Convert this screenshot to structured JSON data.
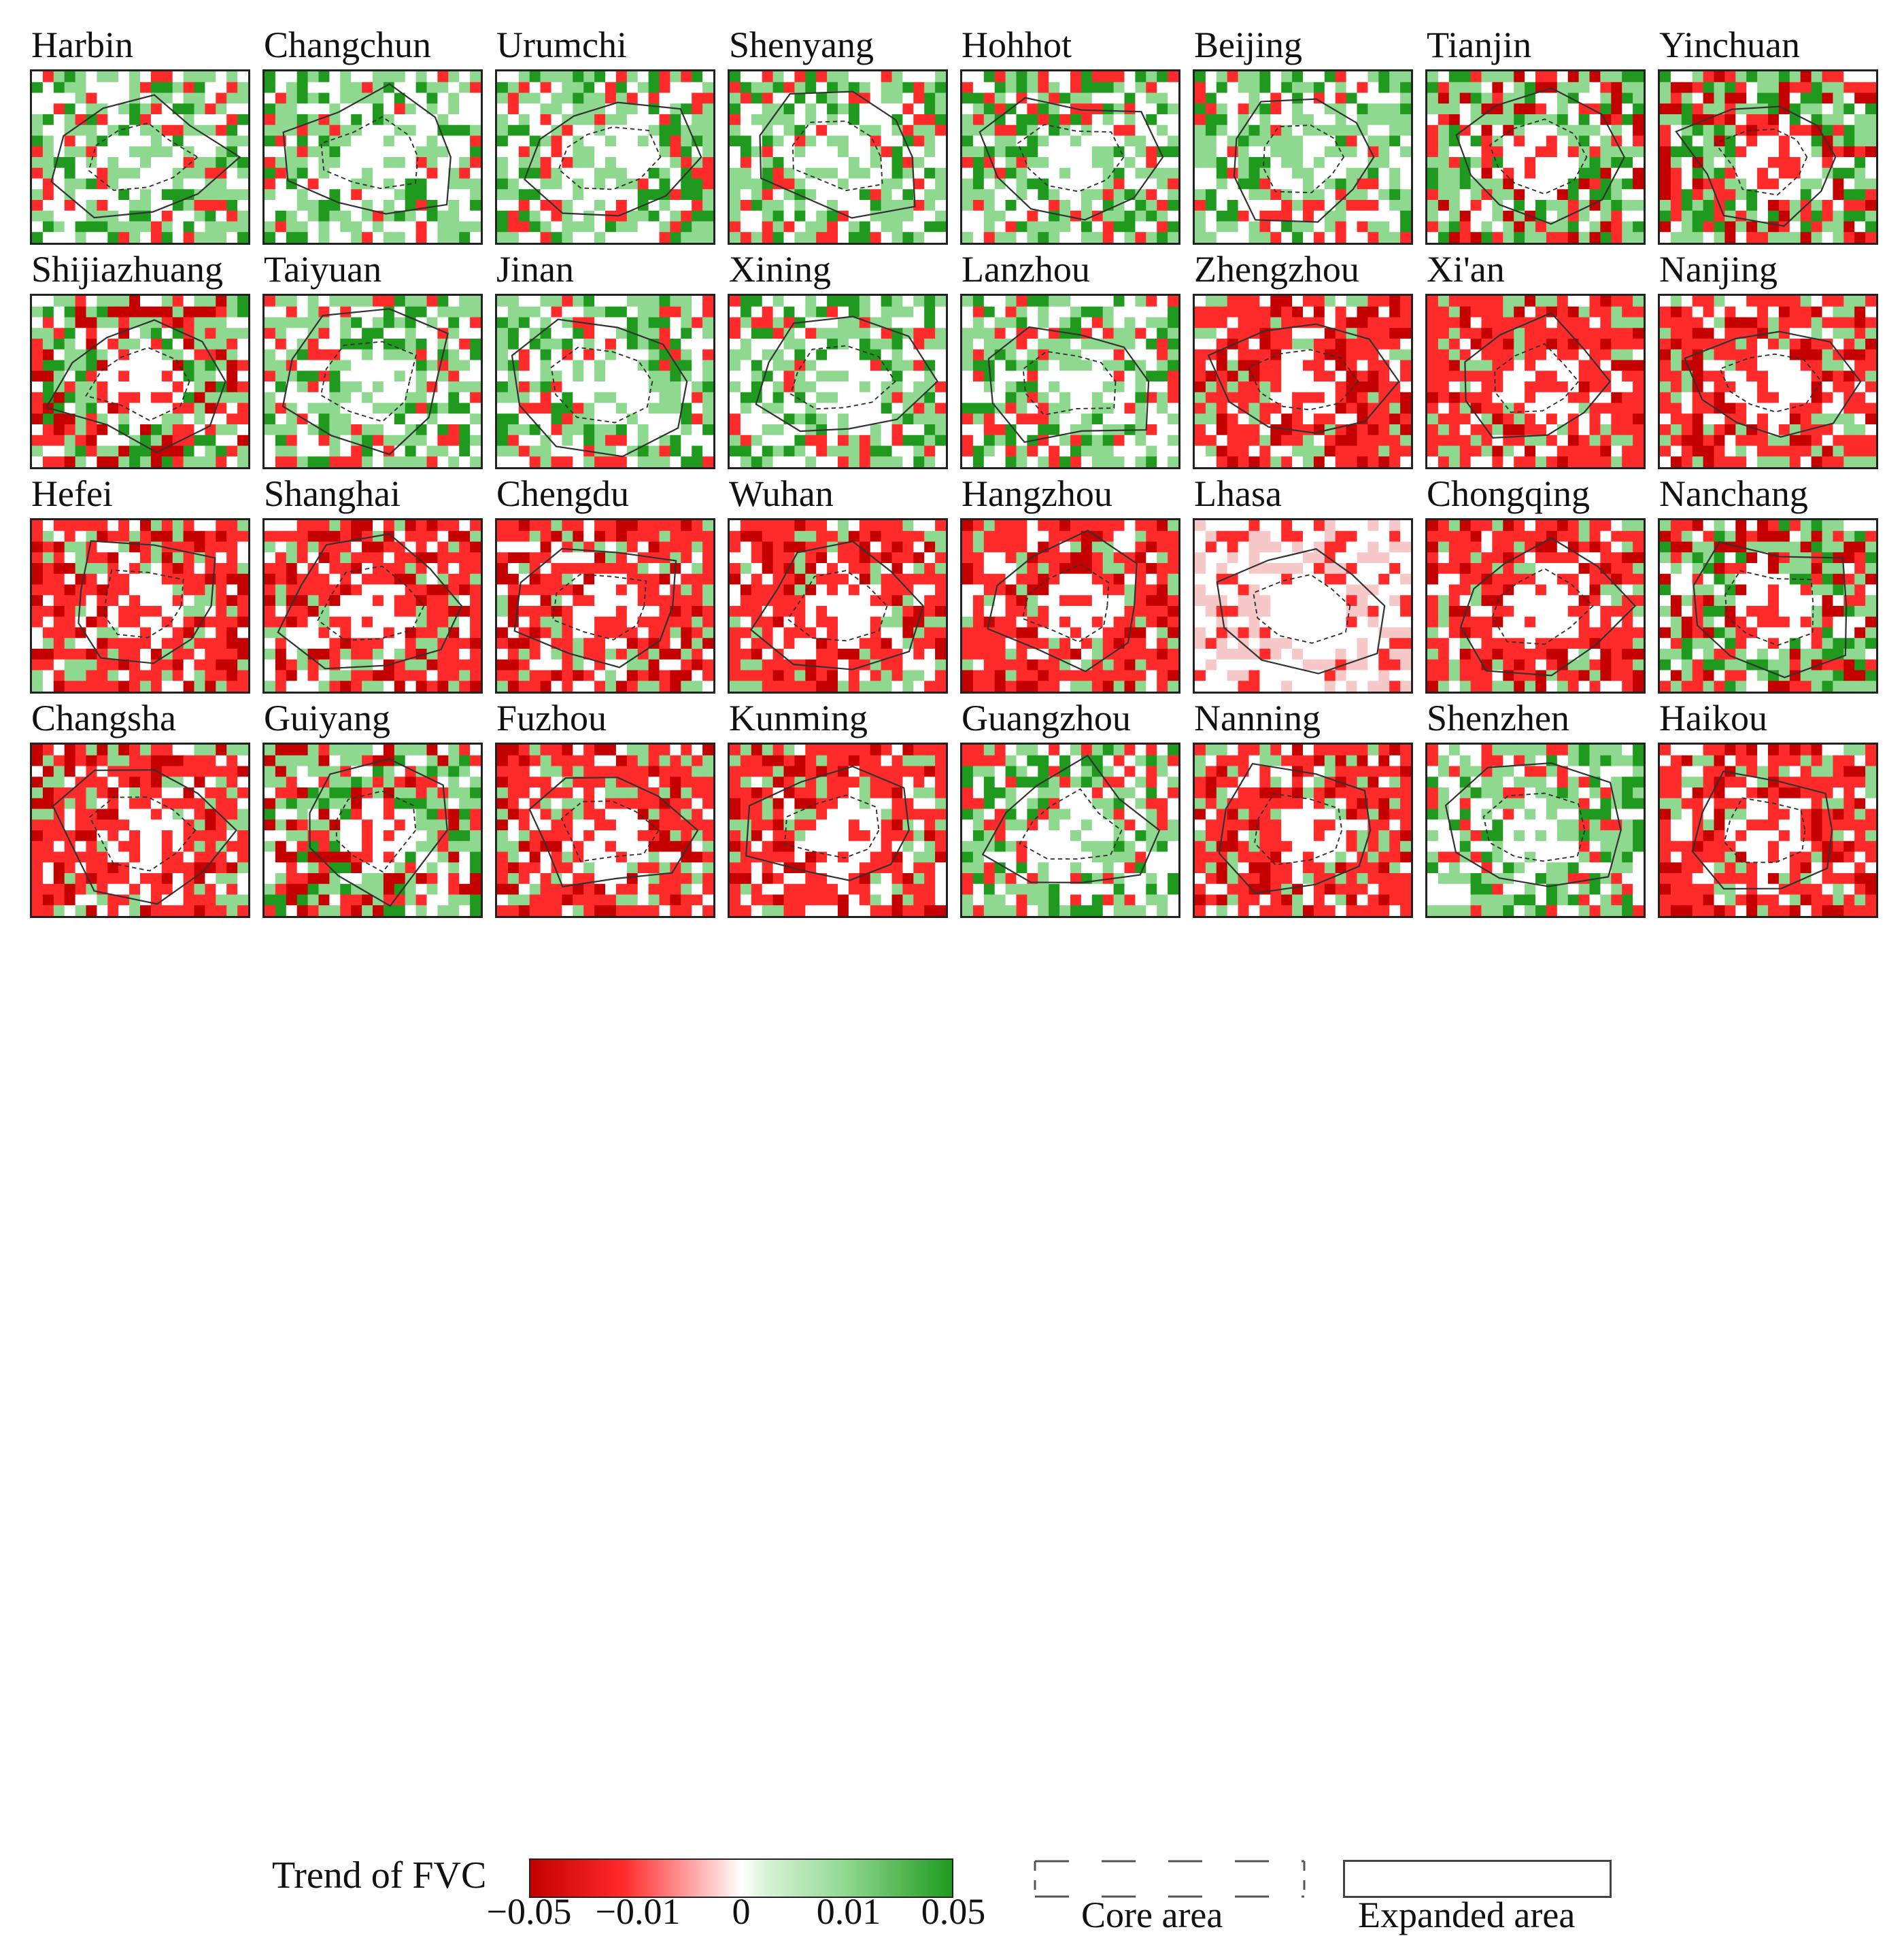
{
  "figure": {
    "cities": [
      {
        "name": "Harbin",
        "trend": "green"
      },
      {
        "name": "Changchun",
        "trend": "green"
      },
      {
        "name": "Urumchi",
        "trend": "green"
      },
      {
        "name": "Shenyang",
        "trend": "green"
      },
      {
        "name": "Hohhot",
        "trend": "green"
      },
      {
        "name": "Beijing",
        "trend": "green"
      },
      {
        "name": "Tianjin",
        "trend": "mixed"
      },
      {
        "name": "Yinchuan",
        "trend": "mixed"
      },
      {
        "name": "Shijiazhuang",
        "trend": "mixed"
      },
      {
        "name": "Taiyuan",
        "trend": "green"
      },
      {
        "name": "Jinan",
        "trend": "green"
      },
      {
        "name": "Xining",
        "trend": "green"
      },
      {
        "name": "Lanzhou",
        "trend": "green"
      },
      {
        "name": "Zhengzhou",
        "trend": "red"
      },
      {
        "name": "Xi'an",
        "trend": "red"
      },
      {
        "name": "Nanjing",
        "trend": "red"
      },
      {
        "name": "Hefei",
        "trend": "red"
      },
      {
        "name": "Shanghai",
        "trend": "red"
      },
      {
        "name": "Chengdu",
        "trend": "red"
      },
      {
        "name": "Wuhan",
        "trend": "red"
      },
      {
        "name": "Hangzhou",
        "trend": "red"
      },
      {
        "name": "Lhasa",
        "trend": "pale"
      },
      {
        "name": "Chongqing",
        "trend": "red"
      },
      {
        "name": "Nanchang",
        "trend": "mixed"
      },
      {
        "name": "Changsha",
        "trend": "red"
      },
      {
        "name": "Guiyang",
        "trend": "mixed"
      },
      {
        "name": "Fuzhou",
        "trend": "red"
      },
      {
        "name": "Kunming",
        "trend": "red"
      },
      {
        "name": "Guangzhou",
        "trend": "green"
      },
      {
        "name": "Nanning",
        "trend": "red"
      },
      {
        "name": "Shenzhen",
        "trend": "green"
      },
      {
        "name": "Haikou",
        "trend": "red"
      }
    ]
  },
  "legend": {
    "title": "Trend of FVC",
    "ticks": [
      "−0.05",
      "−0.01",
      "0",
      "0.01",
      "0.05"
    ],
    "core_label": "Core area",
    "expanded_label": "Expanded area"
  },
  "colors": {
    "strong_decrease": "#c40000",
    "decrease": "#ff2a2a",
    "neutral": "#ffffff",
    "increase": "#8fd88f",
    "strong_increase": "#1f9a1f",
    "outline": "#333333"
  }
}
